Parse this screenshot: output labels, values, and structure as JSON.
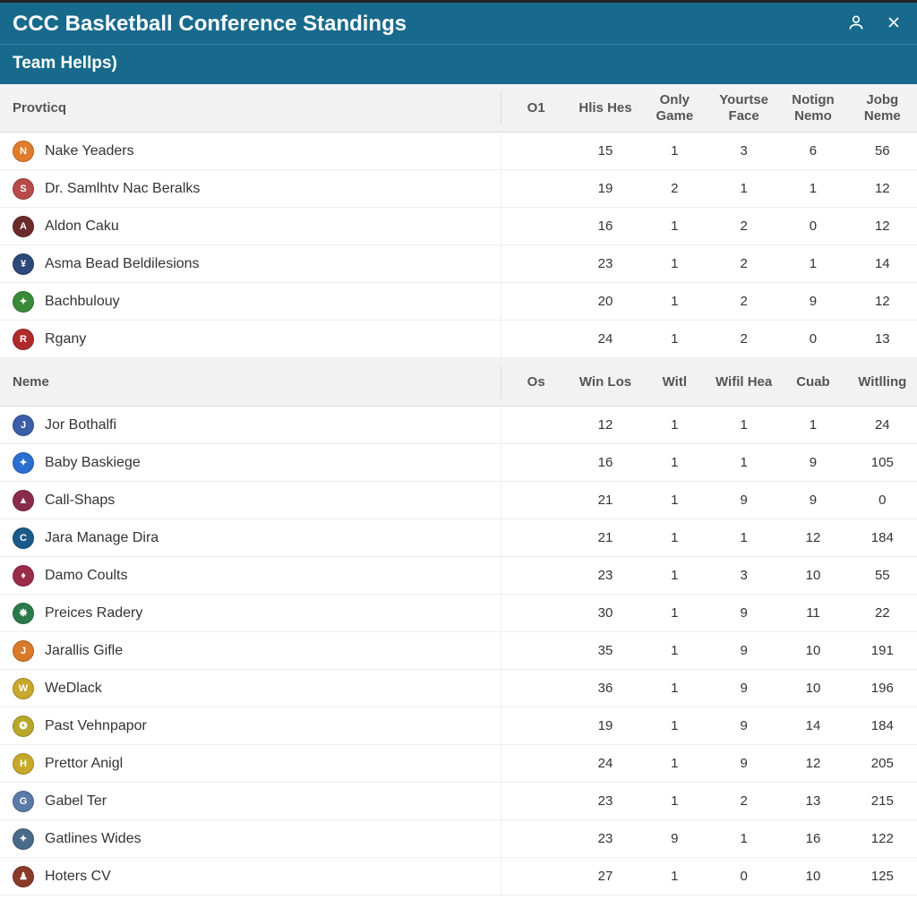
{
  "header": {
    "title": "CCC Basketball Conference Standings",
    "subtitle": "Team Hellps)"
  },
  "colors": {
    "header_bg": "#186a8c",
    "header_text": "#ffffff",
    "section_bg": "#f2f2f2",
    "row_border": "#eeeeee",
    "text": "#333333"
  },
  "sections": [
    {
      "name_header": "Provticq",
      "columns": [
        "O1",
        "Hlis Hes",
        "Only Game",
        "Yourtse Face",
        "Notign Nemo",
        "Jobg Neme"
      ],
      "rows": [
        {
          "team": "Nake Yeaders",
          "logo_bg": "#e07c2a",
          "logo_txt": "N",
          "vals": [
            "",
            "15",
            "1",
            "3",
            "6",
            "56"
          ]
        },
        {
          "team": "Dr. Samlhtv Nac Beralks",
          "logo_bg": "#b84a4a",
          "logo_txt": "S",
          "vals": [
            "",
            "19",
            "2",
            "1",
            "1",
            "12"
          ]
        },
        {
          "team": "Aldon Caku",
          "logo_bg": "#6b2b2b",
          "logo_txt": "A",
          "vals": [
            "",
            "16",
            "1",
            "2",
            "0",
            "12"
          ]
        },
        {
          "team": "Asma Bead Beldilesions",
          "logo_bg": "#2b4a7a",
          "logo_txt": "¥",
          "vals": [
            "",
            "23",
            "1",
            "2",
            "1",
            "14"
          ]
        },
        {
          "team": "Bachbulouy",
          "logo_bg": "#3a8a3a",
          "logo_txt": "✦",
          "vals": [
            "",
            "20",
            "1",
            "2",
            "9",
            "12"
          ]
        },
        {
          "team": "Rgany",
          "logo_bg": "#b02a2a",
          "logo_txt": "R",
          "vals": [
            "",
            "24",
            "1",
            "2",
            "0",
            "13"
          ]
        }
      ]
    },
    {
      "name_header": "Neme",
      "columns": [
        "Os",
        "Win Los",
        "Witl",
        "Wifil Hea",
        "Cuab",
        "Witlling"
      ],
      "rows": [
        {
          "team": "Jor Bothalfi",
          "logo_bg": "#3a5ea8",
          "logo_txt": "J",
          "vals": [
            "",
            "12",
            "1",
            "1",
            "1",
            "24"
          ]
        },
        {
          "team": "Baby Baskiege",
          "logo_bg": "#2a6ed0",
          "logo_txt": "✦",
          "vals": [
            "",
            "16",
            "1",
            "1",
            "9",
            "105"
          ]
        },
        {
          "team": "Call-Shaps",
          "logo_bg": "#8a2b4a",
          "logo_txt": "▲",
          "vals": [
            "",
            "21",
            "1",
            "9",
            "9",
            "0"
          ]
        },
        {
          "team": "Jara Manage Dira",
          "logo_bg": "#1a5a8a",
          "logo_txt": "C",
          "vals": [
            "",
            "21",
            "1",
            "1",
            "12",
            "184"
          ]
        },
        {
          "team": "Damo Coults",
          "logo_bg": "#9a2b4a",
          "logo_txt": "♦",
          "vals": [
            "",
            "23",
            "1",
            "3",
            "10",
            "55"
          ]
        },
        {
          "team": "Preices Radery",
          "logo_bg": "#2a7a4a",
          "logo_txt": "❋",
          "vals": [
            "",
            "30",
            "1",
            "9",
            "11",
            "22"
          ]
        },
        {
          "team": "Jarallis Gifle",
          "logo_bg": "#d87a2a",
          "logo_txt": "J",
          "vals": [
            "",
            "35",
            "1",
            "9",
            "10",
            "191"
          ]
        },
        {
          "team": "WeDlack",
          "logo_bg": "#c8a82a",
          "logo_txt": "W",
          "vals": [
            "",
            "36",
            "1",
            "9",
            "10",
            "196"
          ]
        },
        {
          "team": "Past Vehnpapor",
          "logo_bg": "#b8a82a",
          "logo_txt": "❂",
          "vals": [
            "",
            "19",
            "1",
            "9",
            "14",
            "184"
          ]
        },
        {
          "team": "Prettor Anigl",
          "logo_bg": "#c8a82a",
          "logo_txt": "H",
          "vals": [
            "",
            "24",
            "1",
            "9",
            "12",
            "205"
          ]
        },
        {
          "team": "Gabel Ter",
          "logo_bg": "#5a7aa8",
          "logo_txt": "G",
          "vals": [
            "",
            "23",
            "1",
            "2",
            "13",
            "215"
          ]
        },
        {
          "team": "Gatlines Wides",
          "logo_bg": "#4a6a8a",
          "logo_txt": "✦",
          "vals": [
            "",
            "23",
            "9",
            "1",
            "16",
            "122"
          ]
        },
        {
          "team": "Hoters CV",
          "logo_bg": "#8a3a2a",
          "logo_txt": "♟",
          "vals": [
            "",
            "27",
            "1",
            "0",
            "10",
            "125"
          ]
        }
      ]
    }
  ]
}
